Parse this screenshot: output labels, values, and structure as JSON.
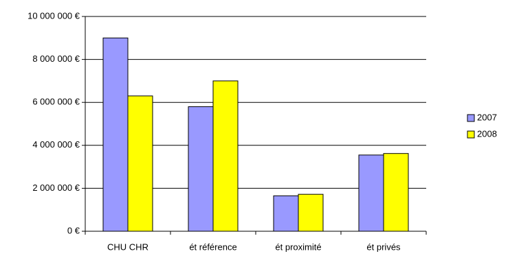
{
  "chart_data": {
    "type": "bar",
    "categories": [
      "CHU CHR",
      "ét référence",
      "ét proximité",
      "ét privés"
    ],
    "series": [
      {
        "name": "2007",
        "values": [
          9000000,
          5800000,
          1650000,
          3550000
        ],
        "color": "#9999ff"
      },
      {
        "name": "2008",
        "values": [
          6300000,
          7000000,
          1720000,
          3620000
        ],
        "color": "#ffff00"
      }
    ],
    "ylim": [
      0,
      10000000
    ],
    "y_ticks": [
      0,
      2000000,
      4000000,
      6000000,
      8000000,
      10000000
    ],
    "y_tick_labels": [
      "0 €",
      "2 000 000 €",
      "4 000 000 €",
      "6 000 000 €",
      "8 000 000 €",
      "10 000 000 €"
    ],
    "grid": true,
    "legend_position": "right",
    "xlabel": "",
    "ylabel": ""
  }
}
